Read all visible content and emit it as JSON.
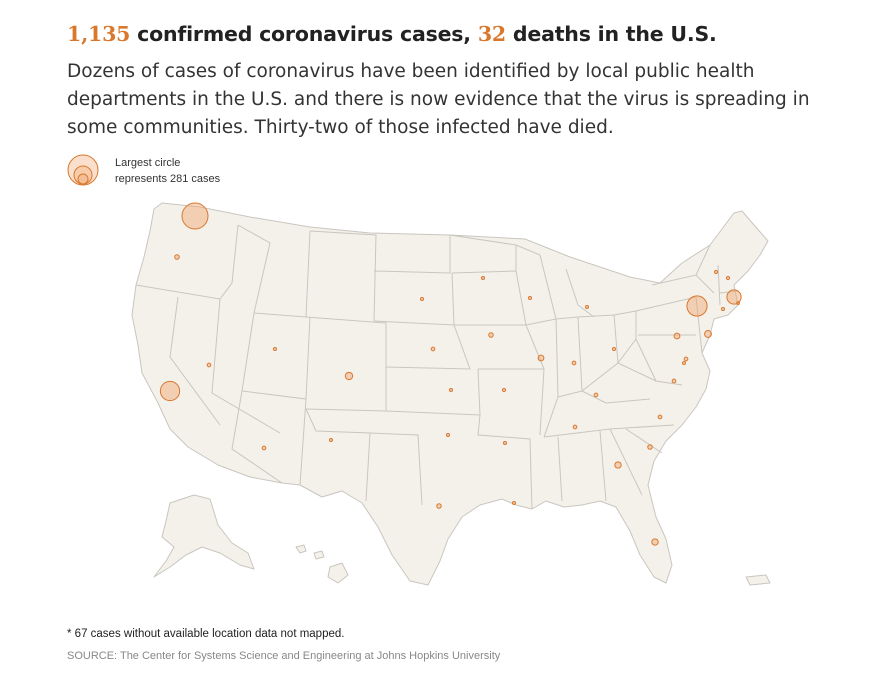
{
  "headline": {
    "cases": "1,135",
    "cases_text": " confirmed coronavirus cases, ",
    "deaths": "32",
    "deaths_text": " deaths in the U.S."
  },
  "dek": "Dozens of cases of coronavirus have been identified by local public health departments in the U.S. and there is now evidence that the virus is spreading in some communities. Thirty-two of those infected have died.",
  "legend": {
    "line1": "Largest circle",
    "line2": "represents 281 cases"
  },
  "colors": {
    "accent": "#d9782d",
    "land": "#f4f1ea",
    "border": "#c9c6c0"
  },
  "map": {
    "max_cases": 281,
    "markers": [
      {
        "place": "Washington",
        "rel": 1.0
      },
      {
        "place": "Oregon",
        "rel": 0.03
      },
      {
        "place": "California",
        "rel": 0.55
      },
      {
        "place": "Nevada",
        "rel": 0.02
      },
      {
        "place": "Utah",
        "rel": 0.01
      },
      {
        "place": "Arizona",
        "rel": 0.02
      },
      {
        "place": "Colorado",
        "rel": 0.08
      },
      {
        "place": "New Mexico",
        "rel": 0.01
      },
      {
        "place": "South Dakota",
        "rel": 0.01
      },
      {
        "place": "Minnesota",
        "rel": 0.01
      },
      {
        "place": "Nebraska",
        "rel": 0.02
      },
      {
        "place": "Kansas",
        "rel": 0.005
      },
      {
        "place": "Oklahoma",
        "rel": 0.005
      },
      {
        "place": "Texas",
        "rel": 0.03
      },
      {
        "place": "Iowa",
        "rel": 0.03
      },
      {
        "place": "Missouri",
        "rel": 0.005
      },
      {
        "place": "Arkansas",
        "rel": 0.005
      },
      {
        "place": "Louisiana",
        "rel": 0.01
      },
      {
        "place": "Wisconsin",
        "rel": 0.01
      },
      {
        "place": "Illinois",
        "rel": 0.05
      },
      {
        "place": "Michigan",
        "rel": 0.005
      },
      {
        "place": "Indiana",
        "rel": 0.02
      },
      {
        "place": "Ohio",
        "rel": 0.01
      },
      {
        "place": "Kentucky",
        "rel": 0.02
      },
      {
        "place": "Tennessee",
        "rel": 0.02
      },
      {
        "place": "Georgia",
        "rel": 0.06
      },
      {
        "place": "Florida",
        "rel": 0.06
      },
      {
        "place": "South Carolina",
        "rel": 0.03
      },
      {
        "place": "North Carolina",
        "rel": 0.02
      },
      {
        "place": "Virginia",
        "rel": 0.02
      },
      {
        "place": "Maryland",
        "rel": 0.02
      },
      {
        "place": "District of Columbia",
        "rel": 0.01
      },
      {
        "place": "Pennsylvania",
        "rel": 0.05
      },
      {
        "place": "New Jersey",
        "rel": 0.07
      },
      {
        "place": "New York",
        "rel": 0.6
      },
      {
        "place": "Connecticut",
        "rel": 0.01
      },
      {
        "place": "Rhode Island",
        "rel": 0.01
      },
      {
        "place": "Massachusetts",
        "rel": 0.3
      },
      {
        "place": "Vermont",
        "rel": 0.005
      },
      {
        "place": "New Hampshire",
        "rel": 0.01
      }
    ]
  },
  "footnote": "* 67 cases without available location data not mapped.",
  "source": "SOURCE: The Center for Systems Science and Engineering at Johns Hopkins University"
}
